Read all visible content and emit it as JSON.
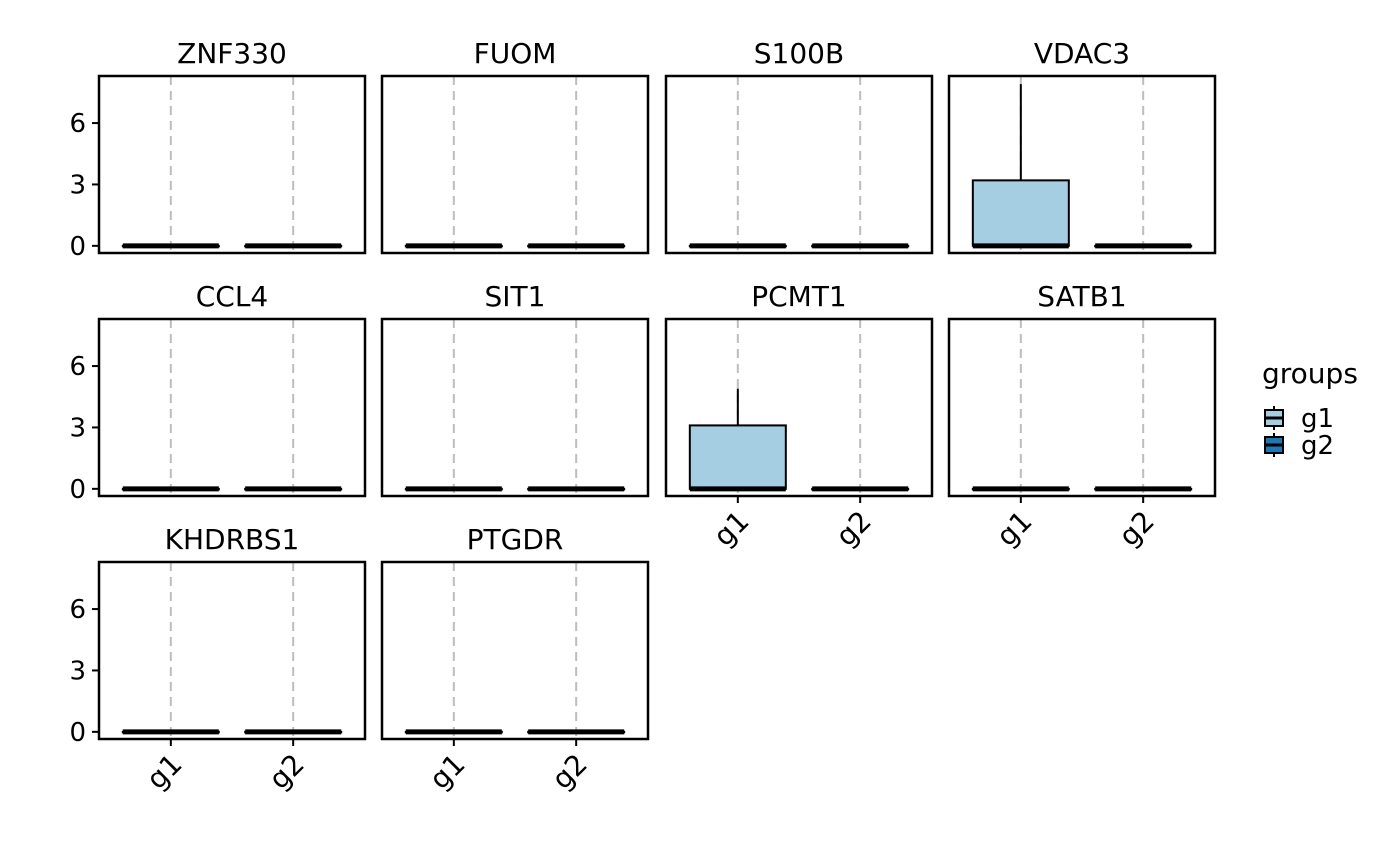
{
  "chart_data": {
    "type": "boxplot",
    "layout": "facet-wrap",
    "ncol": 4,
    "ylim": [
      -0.35,
      8.3
    ],
    "y_ticks": [
      0,
      3,
      6
    ],
    "y_tick_labels": [
      "0",
      "3",
      "6"
    ],
    "categories": [
      "g1",
      "g2"
    ],
    "grid": "vertical dashed at categories",
    "legend": {
      "title": "groups",
      "position": "right",
      "entries": [
        {
          "label": "g1",
          "color": "#a6cee3"
        },
        {
          "label": "g2",
          "color": "#1f78b4"
        }
      ]
    },
    "facets": [
      {
        "title": "ZNF330",
        "boxes": [
          {
            "group": "g1",
            "min": 0,
            "q1": 0,
            "median": 0,
            "q3": 0,
            "max": 0
          },
          {
            "group": "g2",
            "min": 0,
            "q1": 0,
            "median": 0,
            "q3": 0,
            "max": 0
          }
        ]
      },
      {
        "title": "FUOM",
        "boxes": [
          {
            "group": "g1",
            "min": 0,
            "q1": 0,
            "median": 0,
            "q3": 0,
            "max": 0
          },
          {
            "group": "g2",
            "min": 0,
            "q1": 0,
            "median": 0,
            "q3": 0,
            "max": 0
          }
        ]
      },
      {
        "title": "S100B",
        "boxes": [
          {
            "group": "g1",
            "min": 0,
            "q1": 0,
            "median": 0,
            "q3": 0,
            "max": 0
          },
          {
            "group": "g2",
            "min": 0,
            "q1": 0,
            "median": 0,
            "q3": 0,
            "max": 0
          }
        ]
      },
      {
        "title": "VDAC3",
        "boxes": [
          {
            "group": "g1",
            "min": 0,
            "q1": 0,
            "median": 0,
            "q3": 3.2,
            "max": 7.9
          },
          {
            "group": "g2",
            "min": 0,
            "q1": 0,
            "median": 0,
            "q3": 0,
            "max": 0
          }
        ]
      },
      {
        "title": "CCL4",
        "boxes": [
          {
            "group": "g1",
            "min": 0,
            "q1": 0,
            "median": 0,
            "q3": 0,
            "max": 0
          },
          {
            "group": "g2",
            "min": 0,
            "q1": 0,
            "median": 0,
            "q3": 0,
            "max": 0
          }
        ]
      },
      {
        "title": "SIT1",
        "boxes": [
          {
            "group": "g1",
            "min": 0,
            "q1": 0,
            "median": 0,
            "q3": 0,
            "max": 0
          },
          {
            "group": "g2",
            "min": 0,
            "q1": 0,
            "median": 0,
            "q3": 0,
            "max": 0
          }
        ]
      },
      {
        "title": "PCMT1",
        "boxes": [
          {
            "group": "g1",
            "min": 0,
            "q1": 0,
            "median": 0,
            "q3": 3.1,
            "max": 4.9
          },
          {
            "group": "g2",
            "min": 0,
            "q1": 0,
            "median": 0,
            "q3": 0,
            "max": 0
          }
        ]
      },
      {
        "title": "SATB1",
        "boxes": [
          {
            "group": "g1",
            "min": 0,
            "q1": 0,
            "median": 0,
            "q3": 0,
            "max": 0
          },
          {
            "group": "g2",
            "min": 0,
            "q1": 0,
            "median": 0,
            "q3": 0,
            "max": 0
          }
        ]
      },
      {
        "title": "KHDRBS1",
        "boxes": [
          {
            "group": "g1",
            "min": 0,
            "q1": 0,
            "median": 0,
            "q3": 0,
            "max": 0
          },
          {
            "group": "g2",
            "min": 0,
            "q1": 0,
            "median": 0,
            "q3": 0,
            "max": 0
          }
        ]
      },
      {
        "title": "PTGDR",
        "boxes": [
          {
            "group": "g1",
            "min": 0,
            "q1": 0,
            "median": 0,
            "q3": 0,
            "max": 0
          },
          {
            "group": "g2",
            "min": 0,
            "q1": 0,
            "median": 0,
            "q3": 0,
            "max": 0
          }
        ]
      }
    ]
  }
}
